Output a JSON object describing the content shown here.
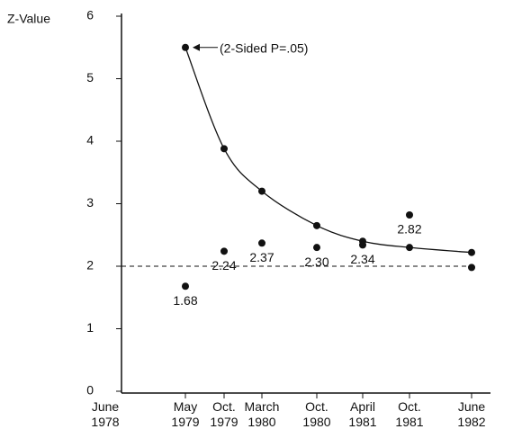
{
  "chart_data": {
    "type": "line",
    "y_label": "Z-Value",
    "categories": [
      "June 1978",
      "May 1979",
      "Oct. 1979",
      "March 1980",
      "Oct. 1980",
      "April 1981",
      "Oct. 1981",
      "June 1982"
    ],
    "series": [
      {
        "color": "#111111",
        "line": true,
        "values": [
          null,
          5.5,
          3.88,
          3.2,
          2.65,
          2.4,
          2.3,
          2.22
        ]
      },
      {
        "color": "#111111",
        "line": false,
        "values": [
          null,
          1.68,
          2.24,
          2.37,
          2.3,
          2.34,
          2.82,
          1.98
        ],
        "value_labels": [
          null,
          "1.68",
          "2.24",
          "2.37",
          "2.30",
          "2.34",
          "2.82",
          null
        ]
      }
    ],
    "reference_line": 2,
    "annotation": "(2-Sided P=.05)",
    "ylim": [
      0,
      6
    ],
    "yticks": [
      0,
      1,
      2,
      3,
      4,
      5,
      6
    ]
  }
}
